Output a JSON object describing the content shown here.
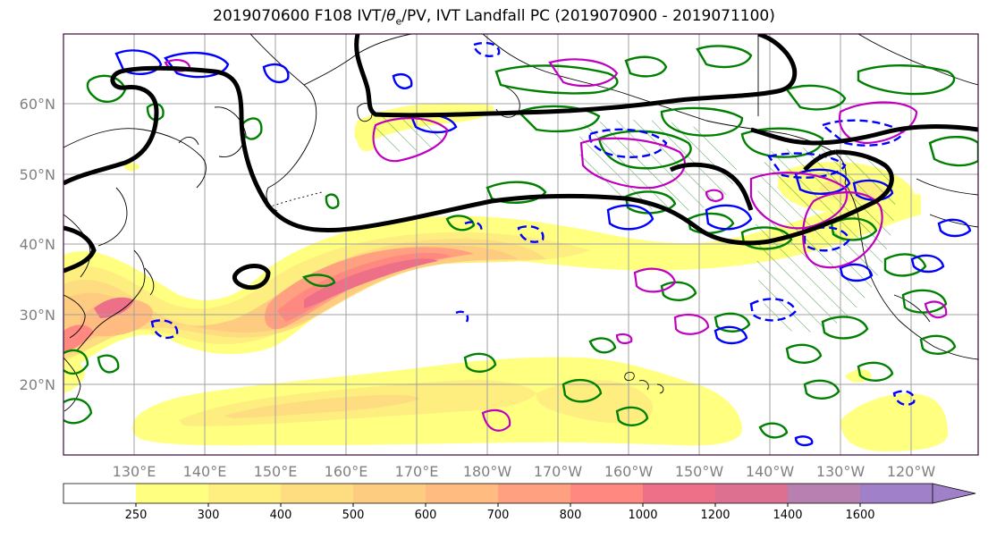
{
  "title_pre": "2019070600 F108 IVT/",
  "title_theta": "θ",
  "title_sub": "e",
  "title_post": "/PV, IVT Landfall PC (2019070900 - 2019071100)",
  "lat_labels": [
    "60°N",
    "50°N",
    "40°N",
    "30°N",
    "20°N"
  ],
  "lon_labels": [
    "130°E",
    "140°E",
    "150°E",
    "160°E",
    "170°E",
    "180°W",
    "170°W",
    "160°W",
    "150°W",
    "140°W",
    "130°W",
    "120°W"
  ],
  "colorbar": {
    "ticks": [
      "250",
      "300",
      "400",
      "500",
      "600",
      "700",
      "800",
      "1000",
      "1200",
      "1400",
      "1600"
    ],
    "colors": [
      "#ffffff",
      "#ffff80",
      "#ffee80",
      "#fedd80",
      "#fecc80",
      "#ffbb80",
      "#ffa080",
      "#ff8880",
      "#ee7088",
      "#dd7090",
      "#b880b0",
      "#a080c8"
    ]
  },
  "colors": {
    "ivt_fill": "#ffff80",
    "contour_black": "#000000",
    "contour_green": "#008000",
    "contour_blue": "#0000ff",
    "contour_magenta": "#c000c0"
  }
}
